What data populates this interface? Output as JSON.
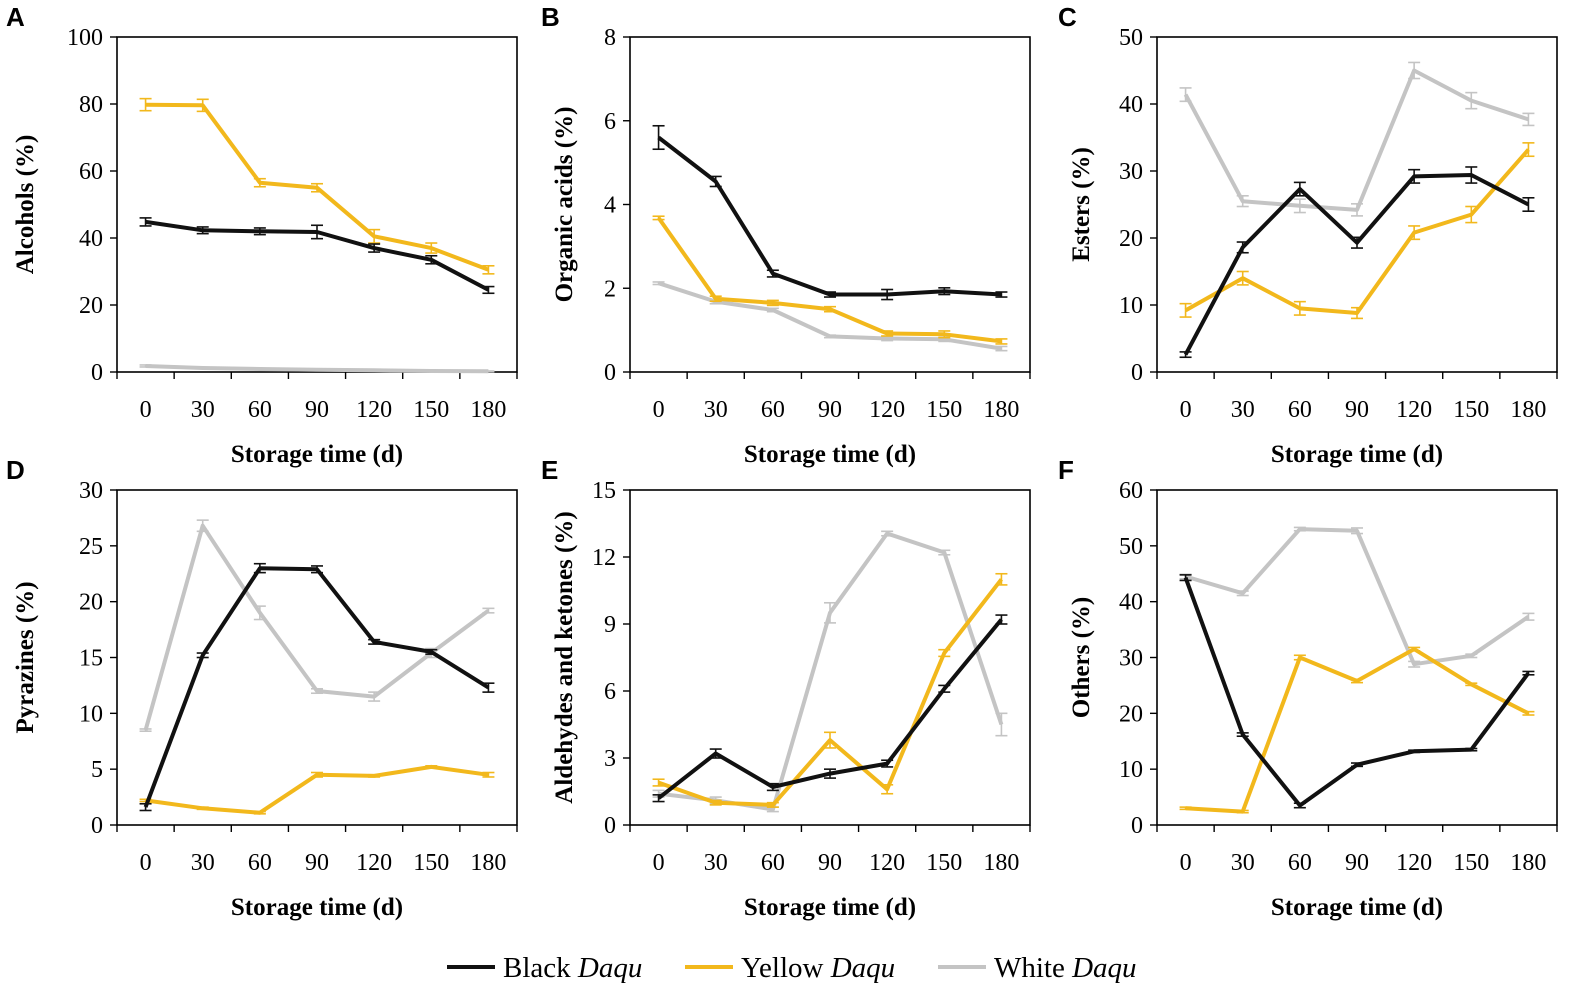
{
  "figure": {
    "legend": [
      {
        "name": "Black",
        "italic": "Daqu",
        "color": "#111111"
      },
      {
        "name": "Yellow",
        "italic": "Daqu",
        "color": "#f2b81c"
      },
      {
        "name": "White",
        "italic": "Daqu",
        "color": "#c4c4c4"
      }
    ]
  },
  "chart_data": [
    {
      "letter": "A",
      "type": "line",
      "xlabel": "Storage time (d)",
      "ylabel": "Alcohols (%)",
      "x": [
        0,
        30,
        60,
        90,
        120,
        150,
        180
      ],
      "ylim": [
        0,
        100
      ],
      "yticks": [
        0,
        20,
        40,
        60,
        80,
        100
      ],
      "series": [
        {
          "name": "Black Daqu",
          "values": [
            44.8,
            42.3,
            42.0,
            41.8,
            37.0,
            33.5,
            24.5
          ],
          "errors": [
            1.2,
            1.0,
            1.0,
            2.0,
            1.2,
            1.2,
            1.0
          ]
        },
        {
          "name": "Yellow Daqu",
          "values": [
            79.8,
            79.6,
            56.5,
            55.0,
            40.5,
            37.0,
            30.5
          ],
          "errors": [
            1.8,
            1.8,
            1.2,
            1.2,
            2.0,
            1.5,
            1.2
          ]
        },
        {
          "name": "White Daqu",
          "values": [
            1.8,
            1.2,
            0.9,
            0.7,
            0.5,
            0.3,
            0.2
          ],
          "errors": [
            0.3,
            0.2,
            0.2,
            0.2,
            0.2,
            0.1,
            0.1
          ]
        }
      ]
    },
    {
      "letter": "B",
      "type": "line",
      "xlabel": "Storage time (d)",
      "ylabel": "Organic acids (%)",
      "x": [
        0,
        30,
        60,
        90,
        120,
        150,
        180
      ],
      "ylim": [
        0,
        8
      ],
      "yticks": [
        0,
        2,
        4,
        6,
        8
      ],
      "series": [
        {
          "name": "Black Daqu",
          "values": [
            5.6,
            4.55,
            2.35,
            1.85,
            1.85,
            1.93,
            1.85
          ],
          "errors": [
            0.28,
            0.12,
            0.08,
            0.06,
            0.12,
            0.08,
            0.06
          ]
        },
        {
          "name": "Yellow Daqu",
          "values": [
            3.68,
            1.75,
            1.65,
            1.5,
            0.92,
            0.9,
            0.73
          ],
          "errors": [
            0.04,
            0.06,
            0.06,
            0.06,
            0.06,
            0.08,
            0.06
          ]
        },
        {
          "name": "White Daqu",
          "values": [
            2.12,
            1.68,
            1.48,
            0.85,
            0.8,
            0.78,
            0.56
          ],
          "errors": [
            0.03,
            0.05,
            0.04,
            0.03,
            0.05,
            0.05,
            0.05
          ]
        }
      ]
    },
    {
      "letter": "C",
      "type": "line",
      "xlabel": "Storage time (d)",
      "ylabel": "Esters (%)",
      "x": [
        0,
        30,
        60,
        90,
        120,
        150,
        180
      ],
      "ylim": [
        0,
        50
      ],
      "yticks": [
        0,
        10,
        20,
        30,
        40,
        50
      ],
      "series": [
        {
          "name": "Black Daqu",
          "values": [
            2.6,
            18.6,
            27.3,
            19.3,
            29.2,
            29.4,
            25.0
          ],
          "errors": [
            0.4,
            0.8,
            1.0,
            0.8,
            1.0,
            1.2,
            1.0
          ]
        },
        {
          "name": "Yellow Daqu",
          "values": [
            9.2,
            14.0,
            9.5,
            8.8,
            20.8,
            23.5,
            33.2
          ],
          "errors": [
            1.0,
            1.0,
            1.0,
            0.8,
            1.0,
            1.2,
            1.0
          ]
        },
        {
          "name": "White Daqu",
          "values": [
            41.4,
            25.5,
            24.8,
            24.2,
            45.0,
            40.5,
            37.7
          ],
          "errors": [
            1.0,
            0.8,
            1.0,
            0.9,
            1.2,
            1.2,
            0.9
          ]
        }
      ]
    },
    {
      "letter": "D",
      "type": "line",
      "xlabel": "Storage time (d)",
      "ylabel": "Pyrazines (%)",
      "x": [
        0,
        30,
        60,
        90,
        120,
        150,
        180
      ],
      "ylim": [
        0,
        30
      ],
      "yticks": [
        0,
        5,
        10,
        15,
        20,
        25,
        30
      ],
      "series": [
        {
          "name": "Black Daqu",
          "values": [
            1.6,
            15.2,
            23.0,
            22.9,
            16.4,
            15.5,
            12.3
          ],
          "errors": [
            0.3,
            0.2,
            0.4,
            0.3,
            0.2,
            0.2,
            0.4
          ]
        },
        {
          "name": "Yellow Daqu",
          "values": [
            2.2,
            1.5,
            1.1,
            4.5,
            4.4,
            5.2,
            4.5
          ],
          "errors": [
            0.1,
            0.1,
            0.1,
            0.2,
            0.1,
            0.1,
            0.2
          ]
        },
        {
          "name": "White Daqu",
          "values": [
            8.5,
            26.8,
            19.0,
            12.0,
            11.5,
            15.4,
            19.2
          ],
          "errors": [
            0.1,
            0.5,
            0.6,
            0.2,
            0.4,
            0.4,
            0.2
          ]
        }
      ]
    },
    {
      "letter": "E",
      "type": "line",
      "xlabel": "Storage time (d)",
      "ylabel": "Aldehydes and ketones (%)",
      "x": [
        0,
        30,
        60,
        90,
        120,
        150,
        180
      ],
      "ylim": [
        0,
        15
      ],
      "yticks": [
        0,
        3,
        6,
        9,
        12,
        15
      ],
      "series": [
        {
          "name": "Black Daqu",
          "values": [
            1.2,
            3.2,
            1.7,
            2.3,
            2.75,
            6.1,
            9.2
          ],
          "errors": [
            0.15,
            0.2,
            0.15,
            0.2,
            0.15,
            0.15,
            0.2
          ]
        },
        {
          "name": "Yellow Daqu",
          "values": [
            1.9,
            1.0,
            0.9,
            3.8,
            1.6,
            7.7,
            11.0
          ],
          "errors": [
            0.15,
            0.1,
            0.1,
            0.35,
            0.2,
            0.15,
            0.25
          ]
        },
        {
          "name": "White Daqu",
          "values": [
            1.4,
            1.1,
            0.7,
            9.5,
            13.05,
            12.2,
            4.5
          ],
          "errors": [
            0.15,
            0.15,
            0.1,
            0.45,
            0.1,
            0.1,
            0.5
          ]
        }
      ]
    },
    {
      "letter": "F",
      "type": "line",
      "xlabel": "Storage time (d)",
      "ylabel": "Others (%)",
      "x": [
        0,
        30,
        60,
        90,
        120,
        150,
        180
      ],
      "ylim": [
        0,
        60
      ],
      "yticks": [
        0,
        10,
        20,
        30,
        40,
        50,
        60
      ],
      "series": [
        {
          "name": "Black Daqu",
          "values": [
            44.3,
            16.2,
            3.5,
            10.8,
            13.2,
            13.5,
            27.2
          ],
          "errors": [
            0.5,
            0.3,
            0.4,
            0.3,
            0.2,
            0.2,
            0.3
          ]
        },
        {
          "name": "Yellow Daqu",
          "values": [
            3.0,
            2.4,
            30.0,
            25.8,
            31.5,
            25.2,
            20.0
          ],
          "errors": [
            0.2,
            0.2,
            0.4,
            0.3,
            0.3,
            0.2,
            0.3
          ]
        },
        {
          "name": "White Daqu",
          "values": [
            44.5,
            41.5,
            53.0,
            52.7,
            28.8,
            30.3,
            37.3
          ],
          "errors": [
            0.4,
            0.4,
            0.3,
            0.5,
            0.5,
            0.3,
            0.6
          ]
        }
      ]
    }
  ]
}
